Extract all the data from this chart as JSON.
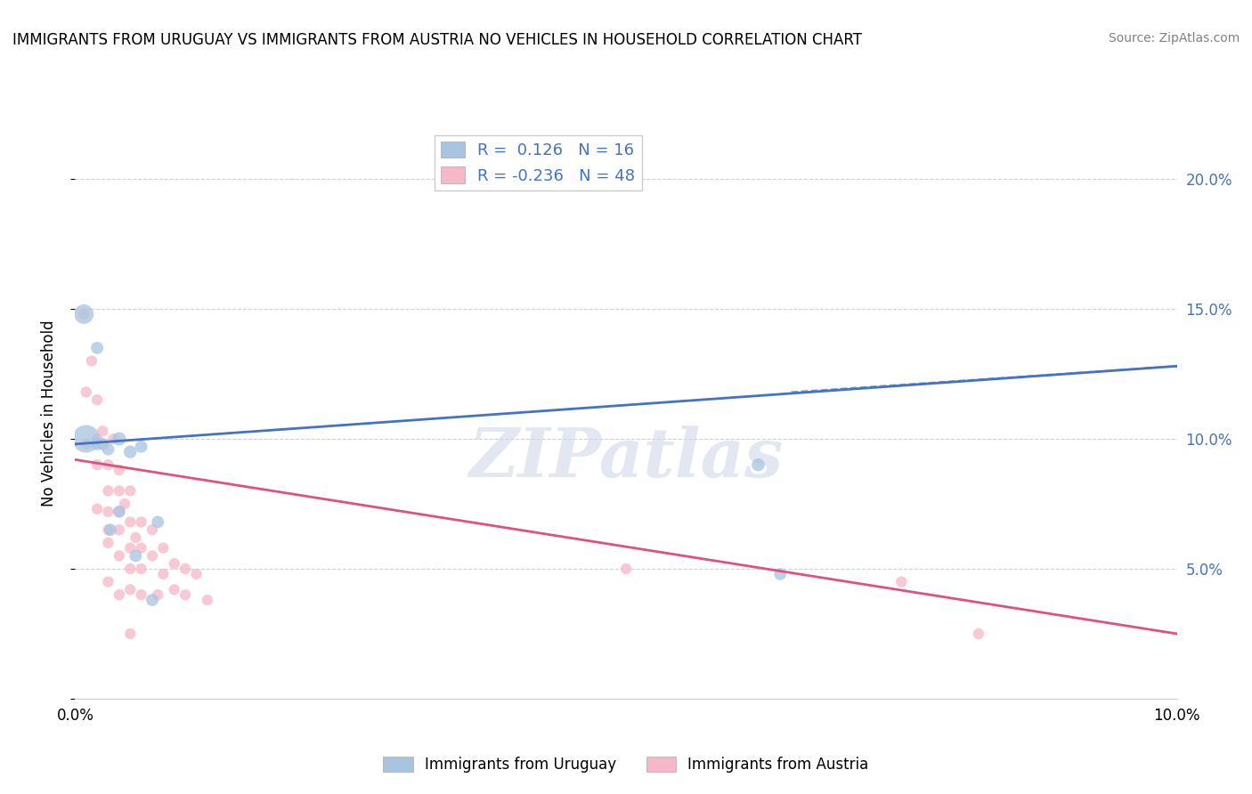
{
  "title": "IMMIGRANTS FROM URUGUAY VS IMMIGRANTS FROM AUSTRIA NO VEHICLES IN HOUSEHOLD CORRELATION CHART",
  "source": "Source: ZipAtlas.com",
  "ylabel": "No Vehicles in Household",
  "legend_label1": "Immigrants from Uruguay",
  "legend_label2": "Immigrants from Austria",
  "r1": 0.126,
  "n1": 16,
  "r2": -0.236,
  "n2": 48,
  "color1": "#a8c4e0",
  "color2": "#f4b8c8",
  "line_color1": "#4472c4",
  "line_color2": "#e05080",
  "xlim": [
    0.0,
    0.1
  ],
  "ylim": [
    0.0,
    0.22
  ],
  "yticks": [
    0.0,
    0.05,
    0.1,
    0.15,
    0.2
  ],
  "ytick_labels": [
    "",
    "5.0%",
    "10.0%",
    "15.0%",
    "20.0%"
  ],
  "xticks": [
    0.0,
    0.02,
    0.04,
    0.06,
    0.08,
    0.1
  ],
  "xtick_labels": [
    "0.0%",
    "",
    "",
    "",
    "",
    "10.0%"
  ],
  "watermark": "ZIPatlas",
  "uruguay_x": [
    0.0008,
    0.001,
    0.002,
    0.002,
    0.0025,
    0.003,
    0.0032,
    0.004,
    0.004,
    0.005,
    0.0055,
    0.006,
    0.007,
    0.0075,
    0.062,
    0.064
  ],
  "uruguay_y": [
    0.148,
    0.1,
    0.135,
    0.098,
    0.098,
    0.096,
    0.065,
    0.1,
    0.072,
    0.095,
    0.055,
    0.097,
    0.038,
    0.068,
    0.09,
    0.048
  ],
  "uruguay_size": [
    250,
    500,
    100,
    100,
    100,
    100,
    100,
    120,
    100,
    110,
    100,
    100,
    100,
    100,
    110,
    100
  ],
  "austria_x": [
    0.0008,
    0.001,
    0.001,
    0.0015,
    0.002,
    0.002,
    0.002,
    0.002,
    0.0025,
    0.003,
    0.003,
    0.003,
    0.003,
    0.003,
    0.003,
    0.0035,
    0.004,
    0.004,
    0.004,
    0.004,
    0.004,
    0.004,
    0.0045,
    0.005,
    0.005,
    0.005,
    0.005,
    0.005,
    0.005,
    0.0055,
    0.006,
    0.006,
    0.006,
    0.006,
    0.007,
    0.007,
    0.0075,
    0.008,
    0.008,
    0.009,
    0.009,
    0.01,
    0.01,
    0.011,
    0.012,
    0.05,
    0.075,
    0.082
  ],
  "austria_y": [
    0.148,
    0.118,
    0.098,
    0.13,
    0.115,
    0.1,
    0.09,
    0.073,
    0.103,
    0.09,
    0.08,
    0.072,
    0.065,
    0.06,
    0.045,
    0.1,
    0.088,
    0.08,
    0.072,
    0.065,
    0.055,
    0.04,
    0.075,
    0.08,
    0.068,
    0.058,
    0.05,
    0.042,
    0.025,
    0.062,
    0.068,
    0.058,
    0.05,
    0.04,
    0.065,
    0.055,
    0.04,
    0.058,
    0.048,
    0.052,
    0.042,
    0.05,
    0.04,
    0.048,
    0.038,
    0.05,
    0.045,
    0.025
  ],
  "austria_size": [
    80,
    80,
    80,
    80,
    80,
    80,
    80,
    80,
    80,
    80,
    80,
    80,
    80,
    80,
    80,
    80,
    80,
    80,
    80,
    80,
    80,
    80,
    80,
    80,
    80,
    80,
    80,
    80,
    80,
    80,
    80,
    80,
    80,
    80,
    80,
    80,
    80,
    80,
    80,
    80,
    80,
    80,
    80,
    80,
    80,
    80,
    80,
    80
  ],
  "blue_line_x0": 0.0,
  "blue_line_y0": 0.098,
  "blue_line_x1": 0.1,
  "blue_line_y1": 0.128,
  "pink_line_x0": 0.0,
  "pink_line_y0": 0.092,
  "pink_line_x1": 0.1,
  "pink_line_y1": 0.025
}
